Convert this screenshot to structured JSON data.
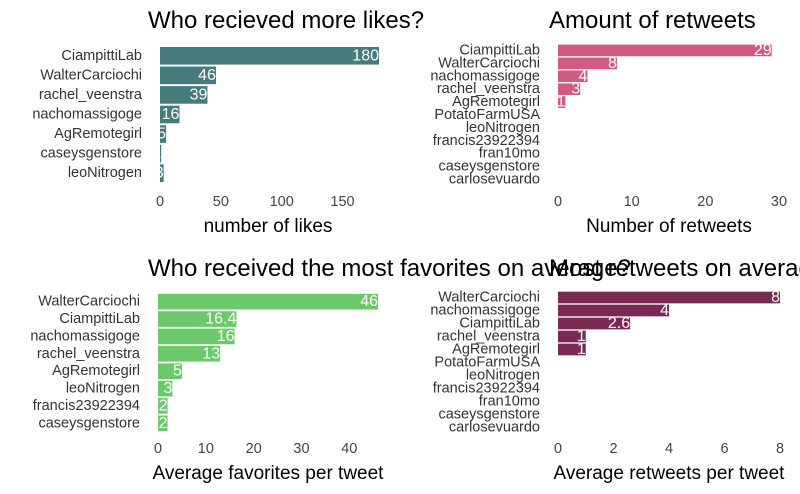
{
  "chart_data": [
    {
      "type": "bar",
      "orientation": "horizontal",
      "title": "Who recieved more likes?",
      "xlabel": "number of likes",
      "ylabel": "",
      "categories": [
        "CiampittiLab",
        "WalterCarciochi",
        "rachel_veenstra",
        "nachomassigoge",
        "AgRemotegirl",
        "caseysgenstore",
        "leoNitrogen"
      ],
      "values": [
        180,
        46,
        39,
        16,
        5,
        1,
        3
      ],
      "labels": [
        "180",
        "46",
        "39",
        "16",
        "5",
        "1",
        "3"
      ],
      "xlim": [
        0,
        180
      ],
      "xticks": [
        0,
        50,
        100,
        150
      ],
      "color": "#457b7b",
      "grid": false
    },
    {
      "type": "bar",
      "orientation": "horizontal",
      "title": "Amount of retweets",
      "xlabel": "Number of retweets",
      "ylabel": "",
      "categories": [
        "CiampittiLab",
        "WalterCarciochi",
        "nachomassigoge",
        "rachel_veenstra",
        "AgRemotegirl",
        "PotatoFarmUSA",
        "leoNitrogen",
        "francis23922394",
        "fran10mo",
        "caseysgenstore",
        "carlosevuardo"
      ],
      "values": [
        29,
        8,
        4,
        3,
        1,
        0,
        0,
        0,
        0,
        0,
        0
      ],
      "labels": [
        "29",
        "8",
        "4",
        "3",
        "1",
        "",
        "",
        "",
        "",
        "",
        ""
      ],
      "xlim": [
        0,
        30
      ],
      "xticks": [
        0,
        10,
        20,
        30
      ],
      "color": "#d05a80",
      "grid": false
    },
    {
      "type": "bar",
      "orientation": "horizontal",
      "title": "Who received the most favorites on average?",
      "xlabel": "Average favorites per tweet",
      "ylabel": "",
      "categories": [
        "WalterCarciochi",
        "CiampittiLab",
        "nachomassigoge",
        "rachel_veenstra",
        "AgRemotegirl",
        "leoNitrogen",
        "francis23922394",
        "caseysgenstore"
      ],
      "values": [
        46,
        16.4,
        16,
        13,
        5,
        3,
        2,
        2
      ],
      "labels": [
        "46",
        "16.4",
        "16",
        "13",
        "5",
        "3",
        "2",
        "2"
      ],
      "xlim": [
        0,
        46
      ],
      "xticks": [
        0,
        10,
        20,
        30,
        40
      ],
      "color": "#6cc96b",
      "grid": false
    },
    {
      "type": "bar",
      "orientation": "horizontal",
      "title": "Most retweets on average?",
      "xlabel": "Average retweets per tweet",
      "ylabel": "",
      "categories": [
        "WalterCarciochi",
        "nachomassigoge",
        "CiampittiLab",
        "rachel_veenstra",
        "AgRemotegirl",
        "PotatoFarmUSA",
        "leoNitrogen",
        "francis23922394",
        "fran10mo",
        "caseysgenstore",
        "carlosevuardo"
      ],
      "values": [
        8,
        4,
        2.6,
        1,
        1,
        0,
        0,
        0,
        0,
        0,
        0
      ],
      "labels": [
        "8",
        "4",
        "2.6",
        "1",
        "1",
        "",
        "",
        "",
        "",
        "",
        ""
      ],
      "xlim": [
        0,
        8
      ],
      "xticks": [
        0,
        2,
        4,
        6,
        8
      ],
      "color": "#7a2a52",
      "grid": false
    }
  ]
}
